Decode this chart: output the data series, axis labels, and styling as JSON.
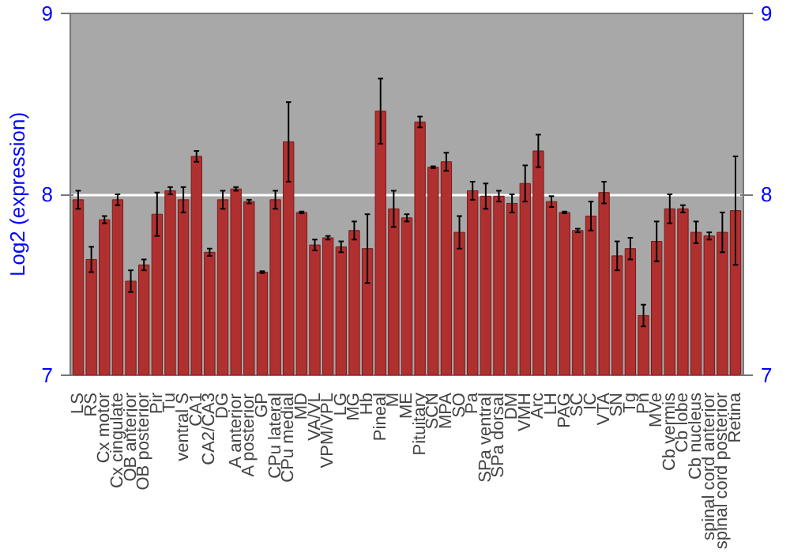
{
  "chart_data": {
    "type": "bar",
    "ylabel": "Log2 (expression)",
    "categories": [
      "LS",
      "RS",
      "Cx motor",
      "Cx cingulate",
      "OB anterior",
      "OB posterior",
      "Pir",
      "Tu",
      "ventral S",
      "CA1",
      "CA2/CA3",
      "DG",
      "A anterior",
      "A posterior",
      "GP",
      "CPu lateral",
      "CPu medial",
      "MD",
      "VA/VL",
      "VPM/VPL",
      "LG",
      "MG",
      "Hb",
      "Pineal",
      "M",
      "ME",
      "Pituitary",
      "SCN",
      "MPA",
      "SO",
      "Pa",
      "SPa ventral",
      "SPa dorsal",
      "DM",
      "VMH",
      "Arc",
      "LH",
      "PAG",
      "SC",
      "IC",
      "VTA",
      "SN",
      "Tg",
      "Pn",
      "MVe",
      "Cb vermis",
      "Cb lobe",
      "Cb nucleus",
      "spinal cord anterior",
      "spinal cord posterior",
      "Retina"
    ],
    "values": [
      7.97,
      7.64,
      7.86,
      7.97,
      7.52,
      7.61,
      7.89,
      8.02,
      7.97,
      8.21,
      7.68,
      7.97,
      8.03,
      7.96,
      7.57,
      7.97,
      8.29,
      7.9,
      7.72,
      7.76,
      7.71,
      7.8,
      7.7,
      8.46,
      7.92,
      7.87,
      8.4,
      8.15,
      8.18,
      7.79,
      8.02,
      7.99,
      7.99,
      7.95,
      8.06,
      8.24,
      7.96,
      7.9,
      7.8,
      7.88,
      8.01,
      7.66,
      7.7,
      7.33,
      7.74,
      7.92,
      7.92,
      7.79,
      7.77,
      7.79,
      7.91
    ],
    "errors": [
      0.05,
      0.07,
      0.02,
      0.03,
      0.06,
      0.03,
      0.12,
      0.02,
      0.07,
      0.03,
      0.02,
      0.05,
      0.01,
      0.01,
      0.005,
      0.05,
      0.22,
      0.005,
      0.03,
      0.01,
      0.03,
      0.05,
      0.19,
      0.18,
      0.1,
      0.02,
      0.03,
      0.005,
      0.05,
      0.09,
      0.05,
      0.07,
      0.03,
      0.05,
      0.1,
      0.09,
      0.03,
      0.005,
      0.01,
      0.08,
      0.06,
      0.08,
      0.06,
      0.06,
      0.11,
      0.08,
      0.02,
      0.06,
      0.02,
      0.11,
      0.3
    ],
    "color": "#b03030",
    "ylim": [
      7,
      9
    ],
    "yticks": [
      7,
      8,
      9
    ],
    "y2lim": [
      7,
      9
    ],
    "y2ticks": [
      7,
      8,
      9
    ],
    "grid": "y"
  }
}
